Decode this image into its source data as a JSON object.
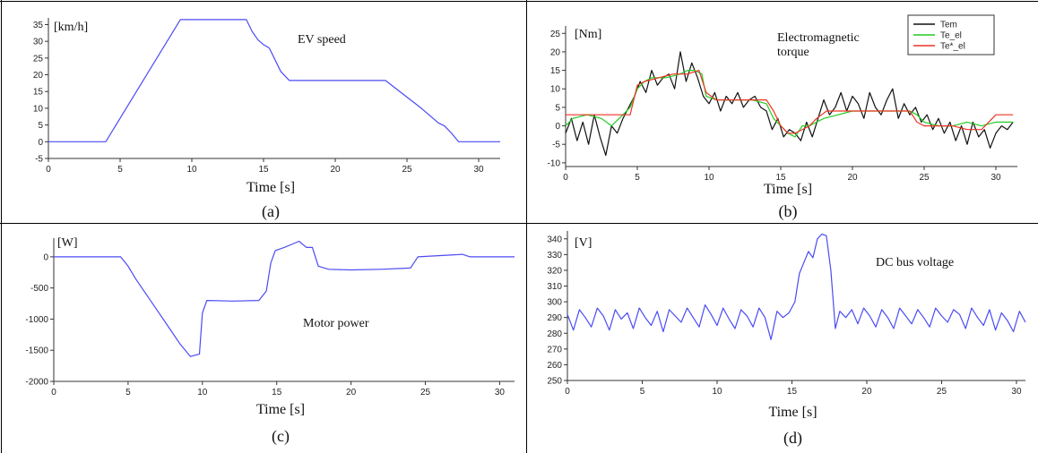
{
  "chart_data": [
    {
      "type": "line",
      "annotation": "EV speed",
      "unit": "[km/h]",
      "xlabel": "Time [s]",
      "caption": "(a)",
      "xlim": [
        0,
        31.5
      ],
      "ylim": [
        -5,
        37
      ],
      "xticks": [
        0,
        5,
        10,
        15,
        20,
        25,
        30
      ],
      "yticks": [
        -5,
        0,
        5,
        10,
        15,
        20,
        25,
        30,
        35
      ],
      "colors": {
        "speed": "#4b4bf5"
      },
      "series": [
        {
          "x": [
            0,
            4,
            9.2,
            13.8,
            14.2,
            14.6,
            15.0,
            15.4,
            15.8,
            16.2,
            16.8,
            23.5,
            26.0,
            27.2,
            27.6,
            28.1,
            28.6,
            31.5
          ],
          "y": [
            0,
            0,
            36.5,
            36.5,
            33,
            30.5,
            29,
            28,
            24.5,
            21,
            18.3,
            18.3,
            10,
            5.6,
            4.8,
            2.6,
            0,
            0
          ]
        }
      ]
    },
    {
      "type": "line",
      "annotation": "Electromagnetic torque",
      "unit": "[Nm]",
      "xlabel": "Time [s]",
      "caption": "(b)",
      "xlim": [
        0,
        31.5
      ],
      "ylim": [
        -11,
        27
      ],
      "xticks": [
        0,
        5,
        10,
        15,
        20,
        25,
        30
      ],
      "yticks": [
        -10,
        -5,
        0,
        5,
        10,
        15,
        20,
        25
      ],
      "legend": [
        "Tem",
        "Te_el",
        "Te*_el"
      ],
      "colors": {
        "Tem": "#111111",
        "Te_el": "#22cc22",
        "Te*_el": "#ee3322"
      },
      "series": [
        {
          "name": "Tem",
          "x": [
            0,
            0.4,
            0.8,
            1.2,
            1.6,
            2.0,
            2.4,
            2.8,
            3.2,
            3.6,
            4.0,
            4.4,
            4.8,
            5.2,
            5.6,
            6.0,
            6.4,
            6.8,
            7.2,
            7.6,
            8.0,
            8.4,
            8.8,
            9.2,
            9.6,
            10.0,
            10.4,
            10.8,
            11.2,
            11.6,
            12.0,
            12.4,
            12.8,
            13.2,
            13.6,
            14.0,
            14.4,
            14.8,
            15.2,
            15.6,
            16.0,
            16.4,
            16.8,
            17.2,
            17.6,
            18.0,
            18.4,
            18.8,
            19.2,
            19.6,
            20.0,
            20.4,
            20.8,
            21.2,
            21.6,
            22.0,
            22.4,
            22.8,
            23.2,
            23.6,
            24.0,
            24.4,
            24.8,
            25.2,
            25.6,
            26.0,
            26.4,
            26.8,
            27.2,
            27.6,
            28.0,
            28.4,
            28.8,
            29.2,
            29.6,
            30.0,
            30.4,
            30.8,
            31.2
          ],
          "y": [
            -2,
            2,
            -4,
            1,
            -5,
            3,
            -3,
            -8,
            0,
            -2,
            2,
            5,
            8,
            12,
            9,
            15,
            11,
            13,
            14,
            10,
            20,
            12,
            17,
            13,
            8,
            6,
            9,
            4,
            8,
            6,
            9,
            5,
            7,
            8,
            5,
            4,
            -1,
            2,
            -3,
            -1,
            -2,
            -4,
            1,
            -3,
            2,
            7,
            3,
            5,
            9,
            4,
            8,
            6,
            2,
            9,
            5,
            3,
            7,
            10,
            2,
            6,
            3,
            5,
            1,
            3,
            -1,
            2,
            -2,
            1,
            -4,
            0,
            -5,
            1,
            -3,
            -1,
            -6,
            -2,
            0,
            -1,
            1
          ]
        },
        {
          "name": "Te_el",
          "x": [
            0,
            0.5,
            1.5,
            2.5,
            3.2,
            4.0,
            4.5,
            5.0,
            5.5,
            6.0,
            7.0,
            8.0,
            8.5,
            9.0,
            9.5,
            9.8,
            10.5,
            11,
            12,
            13,
            14,
            14.5,
            15,
            15.5,
            16,
            16.5,
            17,
            17.5,
            18,
            19,
            20,
            21,
            22,
            23,
            24,
            24.5,
            25,
            26,
            27,
            28,
            29,
            30,
            31.2
          ],
          "y": [
            0,
            2,
            3,
            2,
            0,
            3,
            5,
            10,
            12,
            13,
            13,
            14,
            15,
            15,
            14,
            8,
            7,
            7,
            7,
            7,
            6,
            2,
            0,
            -2,
            -3,
            0,
            0,
            1,
            2,
            3,
            4,
            4,
            4,
            4,
            4,
            3,
            1,
            0,
            0,
            1,
            0,
            1,
            1
          ]
        },
        {
          "name": "Te*_el",
          "x": [
            0,
            0.5,
            4.5,
            5.0,
            5.5,
            6.5,
            7.5,
            8.5,
            9.3,
            9.8,
            10.5,
            14.0,
            14.5,
            15,
            15.5,
            16,
            17,
            17.5,
            18.2,
            19,
            24.0,
            24.5,
            25,
            26,
            27,
            28,
            29,
            29.5,
            30,
            31.2
          ],
          "y": [
            3,
            3,
            3,
            11,
            12,
            13,
            14,
            14,
            15,
            9,
            7,
            7,
            4,
            0,
            -2,
            -2,
            0,
            2,
            4,
            4,
            4,
            1,
            0,
            0,
            0,
            -1,
            -1,
            1,
            3,
            3
          ]
        }
      ]
    },
    {
      "type": "line",
      "annotation": "Motor power",
      "unit": "[W]",
      "xlabel": "Time [s]",
      "caption": "(c)",
      "xlim": [
        0,
        31
      ],
      "ylim": [
        -2000,
        300
      ],
      "xticks": [
        0,
        5,
        10,
        15,
        20,
        25,
        30
      ],
      "yticks": [
        -2000,
        -1500,
        -1000,
        -500,
        0
      ],
      "colors": {
        "power": "#4b4bf5"
      },
      "series": [
        {
          "x": [
            0,
            4.5,
            5.0,
            5.5,
            6.5,
            7.5,
            8.5,
            9.2,
            9.5,
            9.8,
            10.0,
            10.3,
            12,
            13.8,
            14.3,
            14.6,
            14.9,
            15.5,
            16.0,
            16.5,
            17.0,
            17.4,
            17.8,
            18.5,
            20,
            22,
            24.0,
            24.5,
            26,
            27.5,
            28,
            31
          ],
          "y": [
            0,
            0,
            -150,
            -350,
            -700,
            -1050,
            -1400,
            -1600,
            -1580,
            -1560,
            -900,
            -700,
            -710,
            -700,
            -550,
            -100,
            100,
            150,
            200,
            250,
            150,
            150,
            -150,
            -200,
            -210,
            -200,
            -180,
            0,
            20,
            40,
            0,
            0
          ]
        }
      ]
    },
    {
      "type": "line",
      "annotation": "DC bus voltage",
      "unit": "[V]",
      "xlabel": "Time [s]",
      "caption": "(d)",
      "xlim": [
        0,
        30.6
      ],
      "ylim": [
        250,
        345
      ],
      "xticks": [
        0,
        5,
        10,
        15,
        20,
        25,
        30
      ],
      "yticks": [
        250,
        260,
        270,
        280,
        290,
        300,
        310,
        320,
        330,
        340
      ],
      "colors": {
        "voltage": "#4b4bf5"
      },
      "series": [
        {
          "x": [
            0,
            0.4,
            0.8,
            1.2,
            1.6,
            2.0,
            2.4,
            2.8,
            3.2,
            3.6,
            4.0,
            4.4,
            4.8,
            5.2,
            5.6,
            6.0,
            6.4,
            6.8,
            7.2,
            7.6,
            8.0,
            8.4,
            8.8,
            9.2,
            9.6,
            10.0,
            10.4,
            10.8,
            11.2,
            11.6,
            12.0,
            12.4,
            12.8,
            13.2,
            13.6,
            14.0,
            14.4,
            14.8,
            15.2,
            15.5,
            15.8,
            16.1,
            16.4,
            16.7,
            17.0,
            17.3,
            17.6,
            17.9,
            18.2,
            18.6,
            19.0,
            19.4,
            19.8,
            20.2,
            20.6,
            21.0,
            21.4,
            21.8,
            22.2,
            22.6,
            23.0,
            23.4,
            23.8,
            24.2,
            24.6,
            25.0,
            25.4,
            25.8,
            26.2,
            26.6,
            27.0,
            27.4,
            27.8,
            28.2,
            28.6,
            29.0,
            29.4,
            29.8,
            30.2,
            30.6
          ],
          "y": [
            292,
            282,
            295,
            290,
            284,
            296,
            291,
            282,
            295,
            289,
            293,
            283,
            296,
            290,
            285,
            294,
            281,
            295,
            291,
            287,
            296,
            290,
            284,
            298,
            292,
            285,
            296,
            289,
            283,
            295,
            291,
            284,
            296,
            290,
            276,
            294,
            290,
            293,
            300,
            318,
            325,
            332,
            328,
            340,
            343,
            342,
            320,
            283,
            294,
            290,
            295,
            286,
            296,
            291,
            284,
            295,
            290,
            283,
            296,
            291,
            286,
            295,
            290,
            284,
            296,
            291,
            287,
            295,
            292,
            283,
            296,
            290,
            285,
            295,
            282,
            293,
            288,
            281,
            294,
            287
          ]
        }
      ]
    }
  ]
}
